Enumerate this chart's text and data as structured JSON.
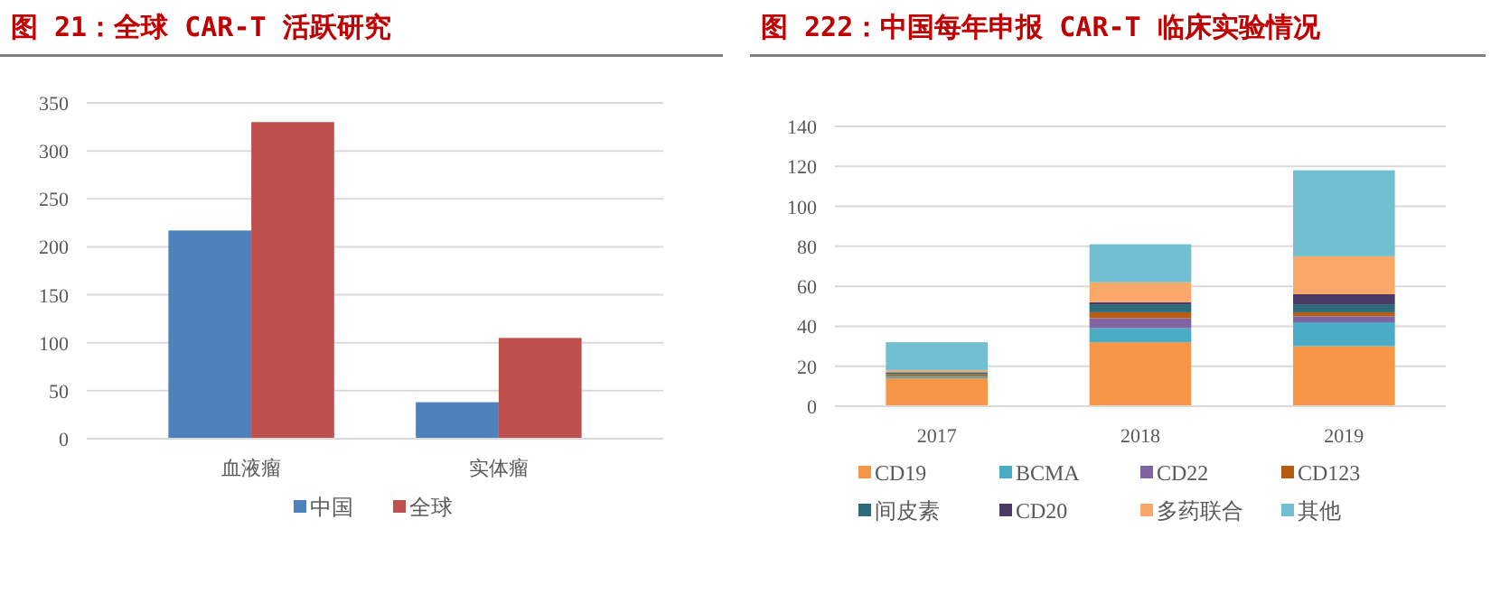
{
  "chart_data": [
    {
      "type": "bar",
      "title": "图 21：全球 CAR-T 活跃研究",
      "categories": [
        "血液瘤",
        "实体瘤"
      ],
      "series": [
        {
          "name": "中国",
          "color": "#4f81bd",
          "values": [
            217,
            38
          ]
        },
        {
          "name": "全球",
          "color": "#c0504d",
          "values": [
            330,
            105
          ]
        }
      ],
      "ylim": [
        0,
        350
      ],
      "yticks": [
        0,
        50,
        100,
        150,
        200,
        250,
        300,
        350
      ],
      "grid": "y",
      "legend": "bottom"
    },
    {
      "type": "bar",
      "title": "图 222：中国每年申报 CAR-T 临床实验情况",
      "categories": [
        "2017",
        "2018",
        "2019"
      ],
      "stacked": true,
      "series": [
        {
          "name": "CD19",
          "color": "#f79646",
          "values": [
            14,
            32,
            30
          ]
        },
        {
          "name": "BCMA",
          "color": "#4bacc6",
          "values": [
            1,
            7,
            12
          ]
        },
        {
          "name": "CD22",
          "color": "#8064a2",
          "values": [
            0,
            5,
            3
          ]
        },
        {
          "name": "CD123",
          "color": "#b65c12",
          "values": [
            1,
            3,
            2
          ]
        },
        {
          "name": "间皮素",
          "color": "#2c6b7a",
          "values": [
            1,
            4,
            4
          ]
        },
        {
          "name": "CD20",
          "color": "#4a3a64",
          "values": [
            0,
            1,
            5
          ]
        },
        {
          "name": "多药联合",
          "color": "#f9a86a",
          "values": [
            1,
            10,
            19
          ]
        },
        {
          "name": "其他",
          "color": "#72bfd2",
          "values": [
            14,
            19,
            43
          ]
        }
      ],
      "ylim": [
        0,
        140
      ],
      "yticks": [
        0,
        20,
        40,
        60,
        80,
        100,
        120,
        140
      ],
      "grid": "y",
      "legend": "bottom"
    }
  ]
}
